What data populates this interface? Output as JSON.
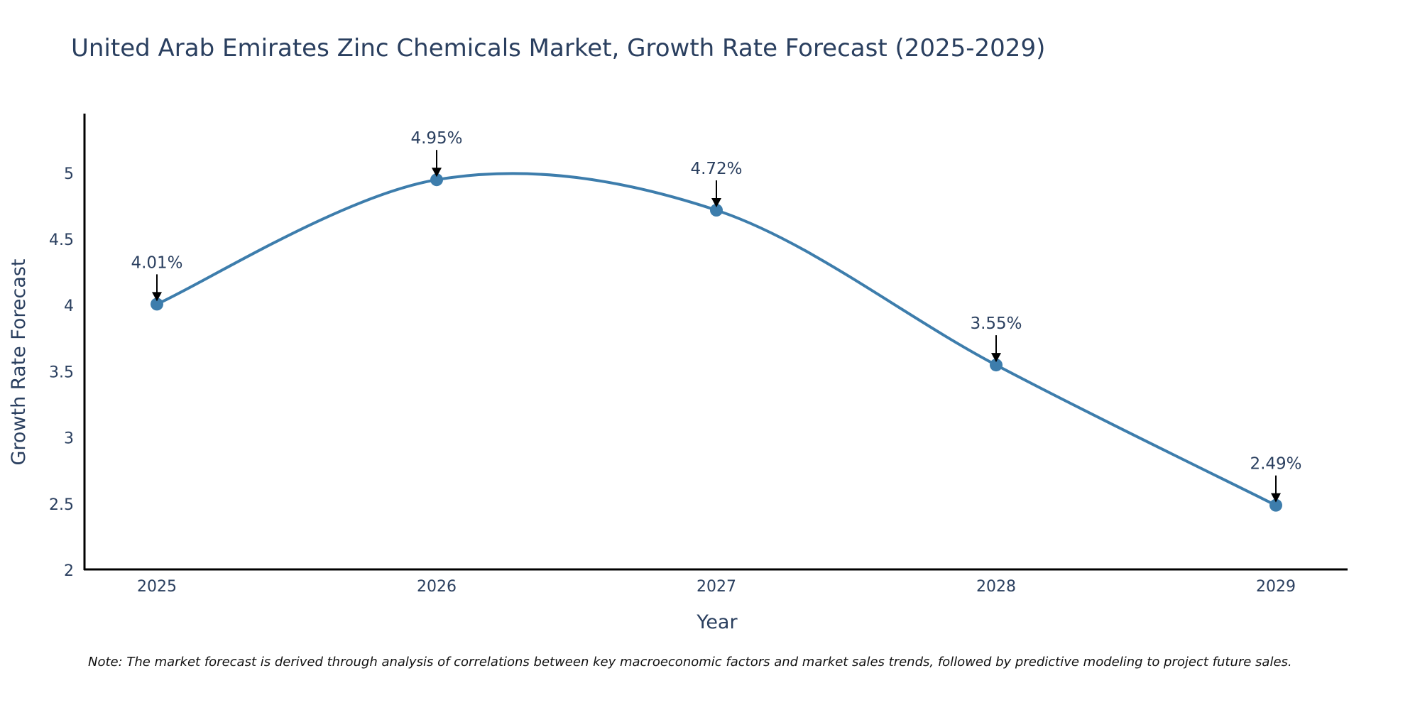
{
  "chart_data": {
    "type": "line",
    "title": "United Arab Emirates Zinc Chemicals Market, Growth Rate Forecast (2025-2029)",
    "xlabel": "Year",
    "ylabel": "Growth Rate Forecast",
    "categories": [
      "2025",
      "2026",
      "2027",
      "2028",
      "2029"
    ],
    "values": [
      4.01,
      4.95,
      4.72,
      3.55,
      2.49
    ],
    "data_labels": [
      "4.01%",
      "4.95%",
      "4.72%",
      "3.55%",
      "2.49%"
    ],
    "ylim": [
      2,
      5.45
    ],
    "yticks": [
      2,
      2.5,
      3,
      3.5,
      4,
      4.5,
      5
    ],
    "ytick_labels": [
      "2",
      "2.5",
      "3",
      "3.5",
      "4",
      "4.5",
      "5"
    ],
    "line_shape": "smooth",
    "grid": false,
    "legend": "none",
    "note": "Note: The market forecast is derived through analysis of correlations between key macroeconomic factors and market sales trends, followed by predictive modeling to project future sales."
  },
  "colors": {
    "series": "#3d7dac",
    "title": "#2a3f5f",
    "axis": "#000000",
    "annotation_text": "#2a3f5f",
    "arrow": "#000000"
  }
}
